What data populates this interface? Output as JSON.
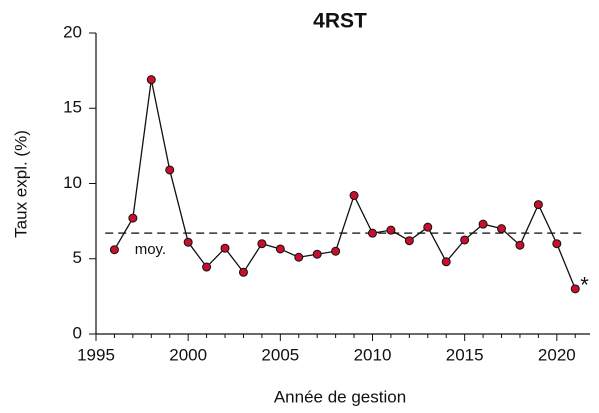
{
  "chart_data": {
    "type": "line",
    "title": "4RST",
    "x_label": "Année de gestion",
    "y_label": "Taux expl. (%)",
    "x": [
      1996,
      1997,
      1998,
      1999,
      2000,
      2001,
      2002,
      2003,
      2004,
      2005,
      2006,
      2007,
      2008,
      2009,
      2010,
      2011,
      2012,
      2013,
      2014,
      2015,
      2016,
      2017,
      2018,
      2019,
      2020,
      2021
    ],
    "series": [
      {
        "name": "4RST",
        "color": "#c8102e",
        "values": [
          5.6,
          7.7,
          16.9,
          10.9,
          6.1,
          4.45,
          5.7,
          4.1,
          6.0,
          5.65,
          5.1,
          5.3,
          5.5,
          9.2,
          6.7,
          6.9,
          6.2,
          7.1,
          4.8,
          6.25,
          7.3,
          7.0,
          5.9,
          8.6,
          6.0,
          3.0
        ]
      }
    ],
    "mean": 6.7,
    "mean_label": "moy.",
    "last_point_note": "*",
    "xlim": [
      1995,
      2021.8
    ],
    "ylim": [
      0,
      20
    ],
    "xticks": [
      1995,
      2000,
      2005,
      2010,
      2015,
      2020
    ],
    "xminorticks": [
      1996,
      1997,
      1998,
      1999,
      2001,
      2002,
      2003,
      2004,
      2006,
      2007,
      2008,
      2009,
      2011,
      2012,
      2013,
      2014,
      2016,
      2017,
      2018,
      2019,
      2021
    ],
    "yticks": [
      0,
      5,
      10,
      15,
      20
    ],
    "grid": false
  }
}
